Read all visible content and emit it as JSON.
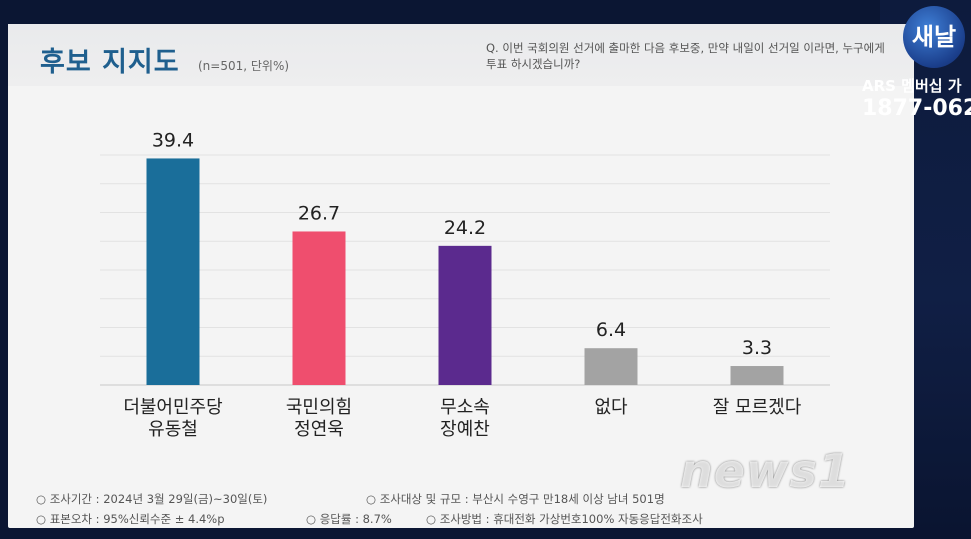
{
  "header": {
    "title": "후보 지지도",
    "subtitle": "(n=501, 단위%)",
    "question": "Q. 이번 국회의원 선거에 출마한 다음 후보중, 만약 내일이 선거일 이라면, 누구에게 투표 하시겠습니까?"
  },
  "chart_data": {
    "type": "bar",
    "categories": [
      "더불어민주당\n유동철",
      "국민의힘\n정연욱",
      "무소속\n장예찬",
      "없다",
      "잘 모르겠다"
    ],
    "values": [
      39.4,
      26.7,
      24.2,
      6.4,
      3.3
    ],
    "value_labels": [
      "39.4",
      "26.7",
      "24.2",
      "6.4",
      "3.3"
    ],
    "colors": [
      "#1a6e9a",
      "#ef4e6e",
      "#5b2a8e",
      "#a3a3a3",
      "#a3a3a3"
    ],
    "ylim": [
      0,
      40
    ],
    "grid": true
  },
  "footer": {
    "period": "○ 조사기간 : 2024년 3월 29일(금)~30일(토)",
    "target": "○ 조사대상 및 규모 : 부산시 수영구 만18세 이상 남녀 501명",
    "error": "○ 표본오차 : 95%신뢰수준 ± 4.4%p",
    "response": "○ 응답률 : 8.7%",
    "method": "○ 조사방법 : 휴대전화 가상번호100% 자동응답전화조사"
  },
  "broadcast": {
    "logo": "새날",
    "ars": "ARS 멤버십 가",
    "phone": "1877-062",
    "watermark": "news1"
  }
}
